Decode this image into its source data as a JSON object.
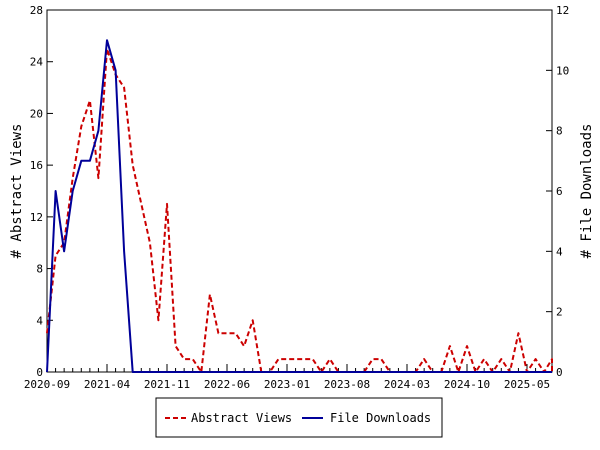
{
  "chart_data": {
    "type": "line",
    "title": "",
    "xlabel": "",
    "ylabel_left": "# Abstract Views",
    "ylabel_right": "# File Downloads",
    "x_ticks": [
      "2020-09",
      "2021-04",
      "2021-11",
      "2022-06",
      "2023-01",
      "2023-08",
      "2024-03",
      "2024-10",
      "2025-05"
    ],
    "x_range": [
      "2020-09",
      "2025-06"
    ],
    "ylim_left": [
      0,
      28
    ],
    "yticks_left": [
      0,
      4,
      8,
      12,
      16,
      20,
      24,
      28
    ],
    "ylim_right": [
      0,
      12
    ],
    "yticks_right": [
      0,
      2,
      4,
      6,
      8,
      10,
      12
    ],
    "grid": false,
    "legend_position": "bottom-center",
    "series": [
      {
        "name": "Abstract Views",
        "axis": "left",
        "color": "#cc0000",
        "style": "dashed",
        "points": [
          [
            "2020-09",
            3
          ],
          [
            "2020-10",
            9
          ],
          [
            "2020-11",
            10
          ],
          [
            "2020-12",
            15
          ],
          [
            "2021-01",
            19
          ],
          [
            "2021-02",
            21
          ],
          [
            "2021-03",
            15
          ],
          [
            "2021-04",
            25
          ],
          [
            "2021-05",
            23
          ],
          [
            "2021-06",
            22
          ],
          [
            "2021-07",
            16
          ],
          [
            "2021-08",
            13
          ],
          [
            "2021-09",
            10
          ],
          [
            "2021-10",
            4
          ],
          [
            "2021-11",
            13
          ],
          [
            "2021-12",
            2
          ],
          [
            "2022-01",
            1
          ],
          [
            "2022-02",
            1
          ],
          [
            "2022-03",
            0
          ],
          [
            "2022-04",
            6
          ],
          [
            "2022-05",
            3
          ],
          [
            "2022-06",
            3
          ],
          [
            "2022-07",
            3
          ],
          [
            "2022-08",
            2
          ],
          [
            "2022-09",
            4
          ],
          [
            "2022-10",
            0
          ],
          [
            "2022-11",
            0
          ],
          [
            "2022-12",
            1
          ],
          [
            "2023-01",
            1
          ],
          [
            "2023-02",
            1
          ],
          [
            "2023-03",
            1
          ],
          [
            "2023-04",
            1
          ],
          [
            "2023-05",
            0
          ],
          [
            "2023-06",
            1
          ],
          [
            "2023-07",
            0
          ],
          [
            "2023-08",
            0
          ],
          [
            "2023-09",
            0
          ],
          [
            "2023-10",
            0
          ],
          [
            "2023-11",
            1
          ],
          [
            "2023-12",
            1
          ],
          [
            "2024-01",
            0
          ],
          [
            "2024-02",
            0
          ],
          [
            "2024-03",
            0
          ],
          [
            "2024-04",
            0
          ],
          [
            "2024-05",
            1
          ],
          [
            "2024-06",
            0
          ],
          [
            "2024-07",
            0
          ],
          [
            "2024-08",
            2
          ],
          [
            "2024-09",
            0
          ],
          [
            "2024-10",
            2
          ],
          [
            "2024-11",
            0
          ],
          [
            "2024-12",
            1
          ],
          [
            "2025-01",
            0
          ],
          [
            "2025-02",
            1
          ],
          [
            "2025-03",
            0
          ],
          [
            "2025-04",
            3
          ],
          [
            "2025-05",
            0
          ],
          [
            "2025-06",
            1
          ],
          [
            "2025-07",
            0
          ],
          [
            "2025-08",
            1
          ],
          [
            "2025-09",
            0
          ]
        ]
      },
      {
        "name": "File Downloads",
        "axis": "right",
        "color": "#000099",
        "style": "solid",
        "points": [
          [
            "2020-09",
            0
          ],
          [
            "2020-10",
            6
          ],
          [
            "2020-11",
            4
          ],
          [
            "2020-12",
            6
          ],
          [
            "2021-01",
            7
          ],
          [
            "2021-02",
            7
          ],
          [
            "2021-03",
            8
          ],
          [
            "2021-04",
            11
          ],
          [
            "2021-05",
            10
          ],
          [
            "2021-06",
            4
          ],
          [
            "2021-07",
            0
          ],
          [
            "2021-08",
            0
          ],
          [
            "2021-09",
            0
          ],
          [
            "2021-10",
            0
          ],
          [
            "2021-11",
            0
          ],
          [
            "2022-06",
            0
          ],
          [
            "2023-01",
            0
          ],
          [
            "2023-08",
            0
          ],
          [
            "2024-03",
            0
          ],
          [
            "2024-10",
            0
          ],
          [
            "2025-05",
            0
          ],
          [
            "2025-09",
            0
          ]
        ]
      }
    ]
  }
}
